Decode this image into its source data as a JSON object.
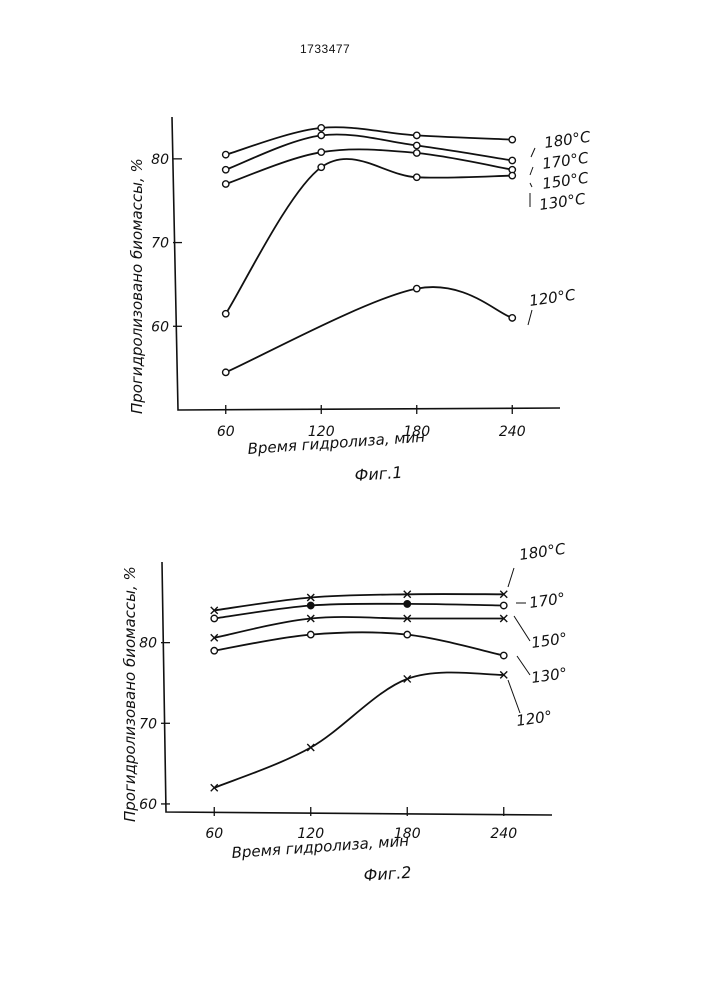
{
  "patent_number": "1733477",
  "chart_data": [
    {
      "type": "line",
      "caption": "Фиг.1",
      "xlabel": "Время гидролиза, мин",
      "ylabel": "Прогидролизовано биомассы, %",
      "x": [
        60,
        120,
        180,
        240
      ],
      "xlim": [
        30,
        270
      ],
      "ylim": [
        50,
        85
      ],
      "x_ticks": [
        "60",
        "120",
        "180",
        "240"
      ],
      "y_ticks": [
        "60",
        "70",
        "80"
      ],
      "y_tick_values": [
        60,
        70,
        80
      ],
      "grid": false,
      "marker": "circle",
      "series": [
        {
          "name": "180°C",
          "values": [
            80.5,
            83.7,
            82.8,
            82.3
          ]
        },
        {
          "name": "170°C",
          "values": [
            78.7,
            82.8,
            81.6,
            79.8
          ]
        },
        {
          "name": "150°C",
          "values": [
            77.0,
            80.8,
            80.7,
            78.7
          ]
        },
        {
          "name": "130°C",
          "values": [
            61.5,
            79.0,
            77.8,
            78.0
          ]
        },
        {
          "name": "120°C",
          "values": [
            54.5,
            null,
            64.5,
            61.0
          ]
        }
      ]
    },
    {
      "type": "line",
      "caption": "Фиг.2",
      "xlabel": "Время гидролиза, мин",
      "ylabel": "Прогидролизовано биомассы, %",
      "x": [
        60,
        120,
        180,
        240
      ],
      "xlim": [
        30,
        270
      ],
      "ylim": [
        59,
        90
      ],
      "x_ticks": [
        "60",
        "120",
        "180",
        "240"
      ],
      "y_ticks": [
        "60",
        "70",
        "80"
      ],
      "y_tick_values": [
        60,
        70,
        80
      ],
      "grid": false,
      "series": [
        {
          "name": "180°C",
          "marker": "cross",
          "values": [
            84.0,
            85.6,
            86.0,
            86.0
          ]
        },
        {
          "name": "170°",
          "marker": "mixed",
          "values": [
            83.0,
            84.6,
            84.8,
            84.6
          ]
        },
        {
          "name": "150°",
          "marker": "cross",
          "values": [
            80.6,
            83.0,
            83.0,
            83.0
          ]
        },
        {
          "name": "130°",
          "marker": "circle",
          "values": [
            79.0,
            81.0,
            81.0,
            78.4
          ]
        },
        {
          "name": "120°",
          "marker": "cross",
          "values": [
            62.0,
            67.0,
            75.5,
            76.0
          ]
        }
      ]
    }
  ]
}
